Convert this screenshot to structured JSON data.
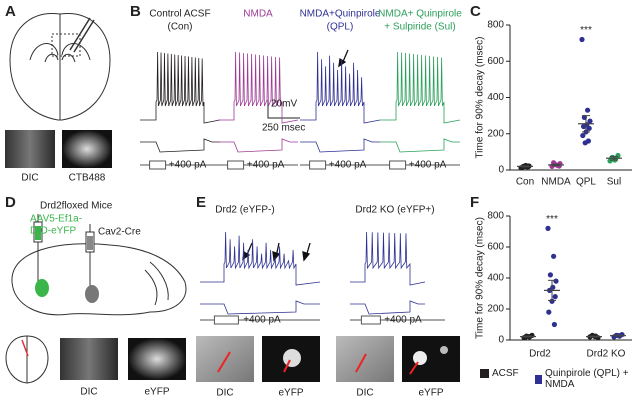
{
  "panel_letters": [
    "A",
    "B",
    "C",
    "D",
    "E",
    "F"
  ],
  "panel_a": {
    "image_labels": [
      "DIC",
      "CTB488"
    ]
  },
  "panel_b": {
    "conditions": [
      {
        "lines": [
          "Control ACSF",
          "(Con)"
        ],
        "color": "#231f20"
      },
      {
        "lines": [
          "NMDA"
        ],
        "color": "#9e3a96"
      },
      {
        "lines": [
          "NMDA+Quinpirole",
          "(QPL)"
        ],
        "color": "#2e3192"
      },
      {
        "lines": [
          "NMDA+ Quinpirole",
          "+ Sulpiride (Sul)"
        ],
        "color": "#2aa05a"
      }
    ],
    "scale_voltage": "20mV",
    "scale_time": "250 msec",
    "stimulus": "+400 pA"
  },
  "panel_d": {
    "title": "Drd2floxed Mice",
    "virus": [
      "AAV5-Ef1a-",
      "DIO-eYFP"
    ],
    "cre": "Cav2-Cre",
    "image_labels": [
      "DIC",
      "eYFP"
    ]
  },
  "panel_e": {
    "conditions": [
      "Drd2 (eYFP-)",
      "Drd2 KO (eYFP+)"
    ],
    "stimulus": "+400 pA",
    "image_labels": [
      "DIC",
      "eYFP",
      "DIC",
      "eYFP"
    ]
  },
  "chart_data": [
    {
      "type": "strip",
      "ylabel": "Time for 90% decay (msec)",
      "categories": [
        "Con",
        "NMDA",
        "QPL",
        "Sul"
      ],
      "colors": [
        "#231f20",
        "#9e3a96",
        "#2e3192",
        "#2aa05a"
      ],
      "values": [
        [
          12,
          18,
          20,
          22,
          25,
          15,
          18,
          20
        ],
        [
          20,
          25,
          30,
          35,
          28,
          40,
          22
        ],
        [
          720,
          330,
          290,
          270,
          250,
          240,
          230,
          210,
          190,
          160,
          150
        ],
        [
          50,
          60,
          70,
          80,
          55,
          65
        ]
      ],
      "means": [
        20,
        28,
        255,
        65
      ],
      "errors": [
        3,
        4,
        45,
        10
      ],
      "annotation": "***",
      "annotation_category": "QPL",
      "ylim": [
        0,
        800
      ],
      "yticks": [
        0,
        200,
        400,
        600,
        800
      ]
    },
    {
      "type": "strip",
      "ylabel": "Time for 90% decay (msec)",
      "categories": [
        "Drd2",
        "Drd2 KO"
      ],
      "series": [
        {
          "name": "ACSF",
          "color": "#231f20",
          "values": [
            [
              15,
              20,
              25,
              30,
              22,
              18
            ],
            [
              20,
              25,
              30,
              15,
              22
            ]
          ],
          "means": [
            22,
            22
          ],
          "errors": [
            3,
            3
          ]
        },
        {
          "name": "Quinpirole (QPL) + NMDA",
          "color": "#2e3192",
          "values": [
            [
              720,
              540,
              420,
              380,
              340,
              320,
              280,
              250,
              180,
              100
            ],
            [
              20,
              25,
              30,
              35,
              28
            ]
          ],
          "means": [
            320,
            28
          ],
          "errors": [
            65,
            3
          ]
        }
      ],
      "annotation": "***",
      "annotation_category": "Drd2",
      "annotation_series": "Quinpirole (QPL) + NMDA",
      "ylim": [
        0,
        800
      ],
      "yticks": [
        0,
        200,
        400,
        600,
        800
      ]
    }
  ]
}
